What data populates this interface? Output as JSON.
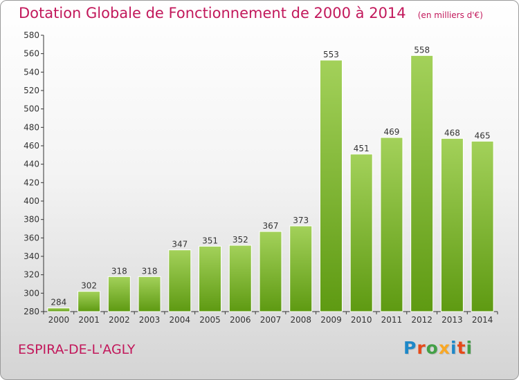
{
  "chart_data": {
    "type": "bar",
    "title": "Dotation Globale de Fonctionnement de 2000 à 2014",
    "unit_note": "(en milliers d'€)",
    "categories": [
      "2000",
      "2001",
      "2002",
      "2003",
      "2004",
      "2005",
      "2006",
      "2007",
      "2008",
      "2009",
      "2010",
      "2011",
      "2012",
      "2013",
      "2014"
    ],
    "values": [
      284,
      302,
      318,
      318,
      347,
      351,
      352,
      367,
      373,
      553,
      451,
      469,
      558,
      468,
      465
    ],
    "ylim": [
      280,
      580
    ],
    "yticks": [
      280,
      300,
      320,
      340,
      360,
      380,
      400,
      420,
      440,
      460,
      480,
      500,
      520,
      540,
      560,
      580
    ],
    "xlabel": "",
    "ylabel": "",
    "grid": false
  },
  "commune": "ESPIRA-DE-L'AGLY",
  "brand": "Proxiti",
  "colors": {
    "title": "#c2185b",
    "bar_light": "#a3d15a",
    "bar_dark": "#5e9a12",
    "axis": "#333333"
  }
}
